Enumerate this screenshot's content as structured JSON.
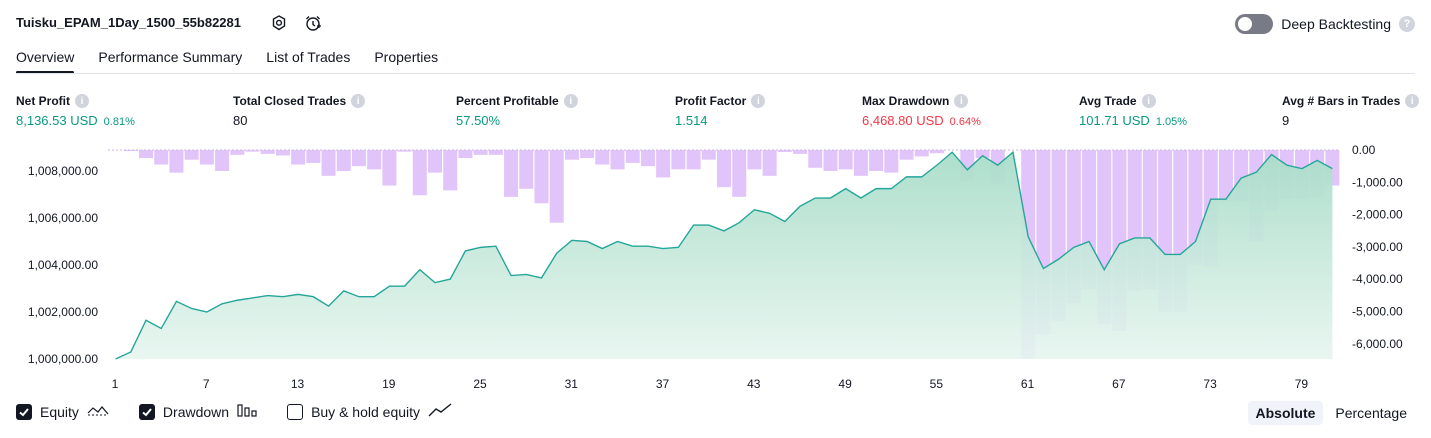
{
  "strategy_title": "Tuisku_EPAM_1Day_1500_55b82281",
  "header_icons": [
    "settings-icon",
    "alarm-clock-icon"
  ],
  "deep_backtesting": {
    "label": "Deep Backtesting",
    "enabled": false
  },
  "tabs": [
    {
      "label": "Overview",
      "active": true
    },
    {
      "label": "Performance Summary",
      "active": false
    },
    {
      "label": "List of Trades",
      "active": false
    },
    {
      "label": "Properties",
      "active": false
    }
  ],
  "metrics": [
    {
      "label": "Net Profit",
      "value": "8,136.53 USD",
      "pct": "0.81%",
      "tone": "pos"
    },
    {
      "label": "Total Closed Trades",
      "value": "80",
      "pct": "",
      "tone": "dark"
    },
    {
      "label": "Percent Profitable",
      "value": "57.50%",
      "pct": "",
      "tone": "pos"
    },
    {
      "label": "Profit Factor",
      "value": "1.514",
      "pct": "",
      "tone": "pos"
    },
    {
      "label": "Max Drawdown",
      "value": "6,468.80 USD",
      "pct": "0.64%",
      "tone": "neg"
    },
    {
      "label": "Avg Trade",
      "value": "101.71 USD",
      "pct": "1.05%",
      "tone": "pos"
    },
    {
      "label": "Avg # Bars in Trades",
      "value": "9",
      "pct": "",
      "tone": "dark"
    }
  ],
  "legend": [
    {
      "label": "Equity",
      "checked": true,
      "icon": "equity-line-icon"
    },
    {
      "label": "Drawdown",
      "checked": true,
      "icon": "drawdown-bars-icon"
    },
    {
      "label": "Buy & hold equity",
      "checked": false,
      "icon": "buy-hold-line-icon"
    }
  ],
  "scale_mode": {
    "options": [
      "Absolute",
      "Percentage"
    ],
    "selected": "Absolute"
  },
  "colors": {
    "equity_line": "#26a69a",
    "equity_fill": "#c5eade",
    "drawdown_bar": "#d9b4f7",
    "positive": "#089981",
    "negative": "#f23645"
  },
  "chart_data": {
    "type": "area",
    "x_ticks": [
      "1",
      "7",
      "13",
      "19",
      "25",
      "31",
      "37",
      "43",
      "49",
      "55",
      "61",
      "67",
      "73",
      "79"
    ],
    "left_axis": {
      "label": "Equity",
      "range": [
        1000000,
        1008500
      ],
      "ticks": [
        "1,000,000.00",
        "1,002,000.00",
        "1,004,000.00",
        "1,006,000.00",
        "1,008,000.00"
      ]
    },
    "right_axis": {
      "label": "Drawdown",
      "range": [
        -6470,
        0
      ],
      "ticks": [
        "0.00",
        "-1,000.00",
        "-2,000.00",
        "-3,000.00",
        "-4,000.00",
        "-5,000.00",
        "-6,000.00"
      ]
    },
    "series": [
      {
        "name": "Equity",
        "x": [
          1,
          2,
          3,
          4,
          5,
          6,
          7,
          8,
          9,
          10,
          11,
          12,
          13,
          14,
          15,
          16,
          17,
          18,
          19,
          20,
          21,
          22,
          23,
          24,
          25,
          26,
          27,
          28,
          29,
          30,
          31,
          32,
          33,
          34,
          35,
          36,
          37,
          38,
          39,
          40,
          41,
          42,
          43,
          44,
          45,
          46,
          47,
          48,
          49,
          50,
          51,
          52,
          53,
          54,
          55,
          56,
          57,
          58,
          59,
          60,
          61,
          62,
          63,
          64,
          65,
          66,
          67,
          68,
          69,
          70,
          71,
          72,
          73,
          74,
          75,
          76,
          77,
          78,
          79,
          80,
          81
        ],
        "values": [
          1000000,
          1000300,
          1001650,
          1001300,
          1002450,
          1002150,
          1002000,
          1002350,
          1002500,
          1002600,
          1002700,
          1002650,
          1002750,
          1002650,
          1002250,
          1002900,
          1002650,
          1002650,
          1003100,
          1003100,
          1003800,
          1003250,
          1003400,
          1004600,
          1004750,
          1004800,
          1003550,
          1003600,
          1003450,
          1004500,
          1005050,
          1005000,
          1004700,
          1005000,
          1004800,
          1004800,
          1004700,
          1004750,
          1005700,
          1005700,
          1005450,
          1005800,
          1006350,
          1006200,
          1005850,
          1006500,
          1006850,
          1006850,
          1007250,
          1006850,
          1007250,
          1007250,
          1007750,
          1007750,
          1008250,
          1008800,
          1008050,
          1008650,
          1008250,
          1008800,
          1005200,
          1003850,
          1004250,
          1004750,
          1005000,
          1003800,
          1004900,
          1005150,
          1005150,
          1004450,
          1004450,
          1005000,
          1006800,
          1006800,
          1007700,
          1007950,
          1008700,
          1008250,
          1008100,
          1008450,
          1008100
        ]
      },
      {
        "name": "Drawdown",
        "x": [
          1,
          2,
          3,
          4,
          5,
          6,
          7,
          8,
          9,
          10,
          11,
          12,
          13,
          14,
          15,
          16,
          17,
          18,
          19,
          20,
          21,
          22,
          23,
          24,
          25,
          26,
          27,
          28,
          29,
          30,
          31,
          32,
          33,
          34,
          35,
          36,
          37,
          38,
          39,
          40,
          41,
          42,
          43,
          44,
          45,
          46,
          47,
          48,
          49,
          50,
          51,
          52,
          53,
          54,
          55,
          56,
          57,
          58,
          59,
          60,
          61,
          62,
          63,
          64,
          65,
          66,
          67,
          68,
          69,
          70,
          71,
          72,
          73,
          74,
          75,
          76,
          77,
          78,
          79,
          80,
          81
        ],
        "values": [
          0,
          -20,
          -250,
          -450,
          -700,
          -300,
          -450,
          -650,
          -150,
          -50,
          -120,
          -170,
          -450,
          -400,
          -800,
          -650,
          -500,
          -600,
          -1100,
          -50,
          -1400,
          -700,
          -1250,
          -250,
          -150,
          -150,
          -1450,
          -1200,
          -1650,
          -2250,
          -300,
          -250,
          -450,
          -600,
          -400,
          -500,
          -850,
          -600,
          -600,
          -300,
          -1150,
          -1450,
          -600,
          -800,
          -60,
          -120,
          -550,
          -650,
          -600,
          -800,
          -650,
          -700,
          -300,
          -200,
          -100,
          0,
          -950,
          -250,
          -1050,
          0,
          -6460,
          -5700,
          -5300,
          -4750,
          -4300,
          -5400,
          -5600,
          -4350,
          -4300,
          -5000,
          -5000,
          -3550,
          -3600,
          -1600,
          -1600,
          -2850,
          -1900,
          -1500,
          -1500,
          -1450,
          -1100
        ]
      }
    ]
  }
}
